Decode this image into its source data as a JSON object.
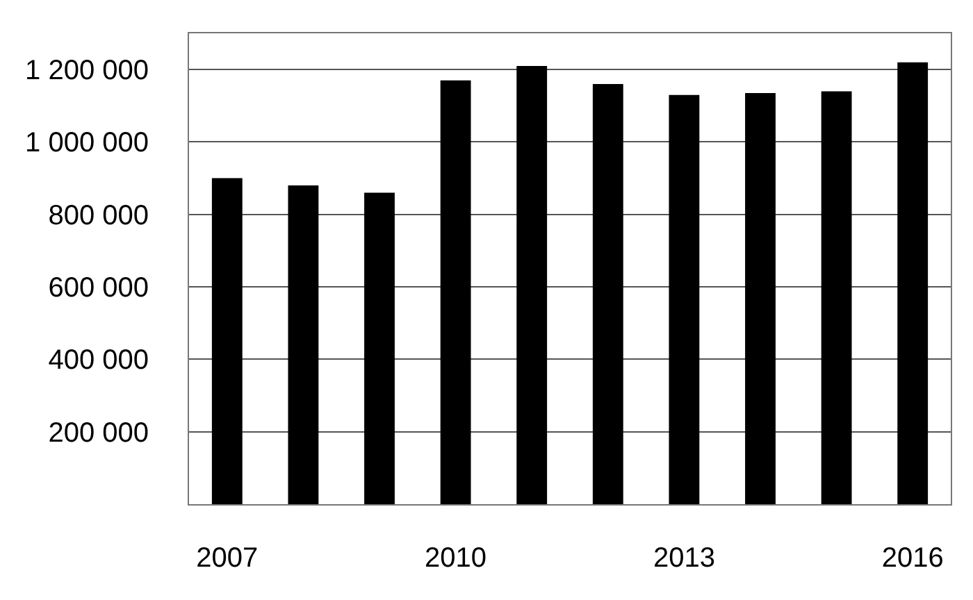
{
  "chart_data": {
    "type": "bar",
    "categories": [
      "2007",
      null,
      null,
      "2010",
      null,
      null,
      "2013",
      null,
      null,
      "2016"
    ],
    "values": [
      900000,
      880000,
      860000,
      1170000,
      1210000,
      1160000,
      1130000,
      1135000,
      1140000,
      1220000
    ],
    "color": "#000000",
    "ylim": [
      0,
      1300000
    ],
    "yticks": [
      {
        "value": 200000,
        "label": "200 000"
      },
      {
        "value": 400000,
        "label": "400 000"
      },
      {
        "value": 600000,
        "label": "600 000"
      },
      {
        "value": 800000,
        "label": "800 000"
      },
      {
        "value": 1000000,
        "label": "1 000 000"
      },
      {
        "value": 1200000,
        "label": "1 200 000"
      }
    ],
    "grid": "y"
  }
}
